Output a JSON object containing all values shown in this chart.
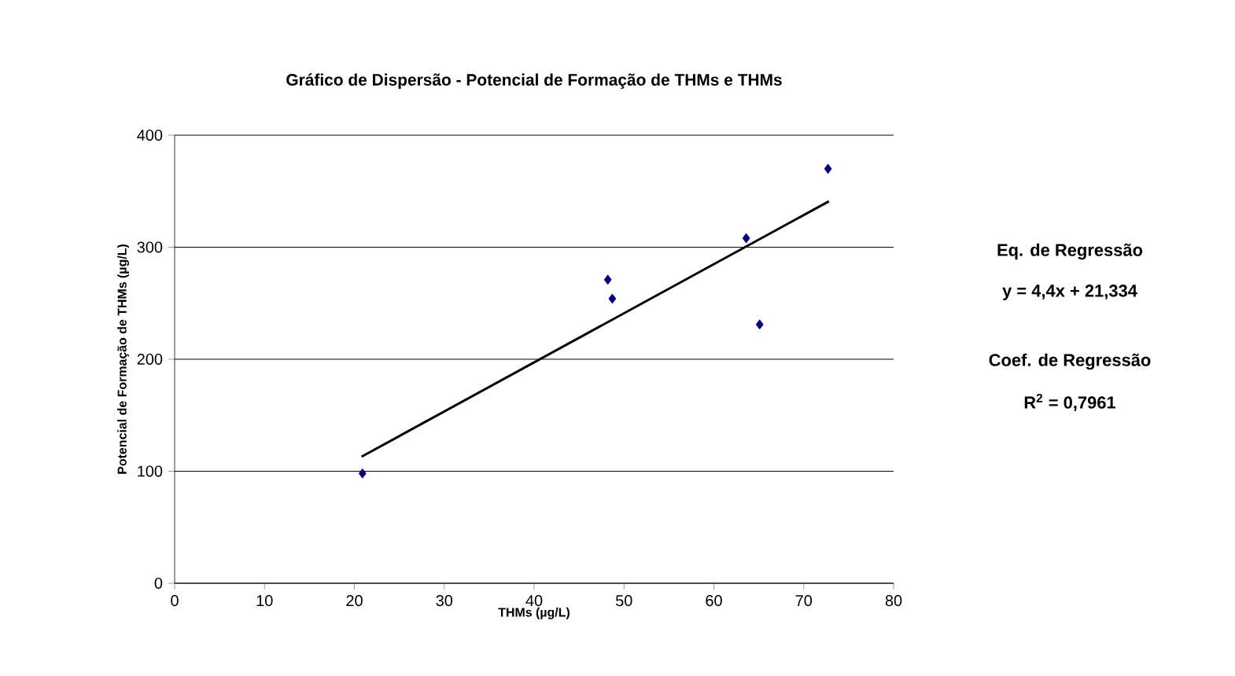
{
  "chart_data": {
    "type": "scatter",
    "title": "Gráfico de Dispersão - Potencial de Formação de THMs e THMs",
    "xlabel": "THMs (µg/L)",
    "ylabel": "Potencial de Formação de THMs (µg/L)",
    "series": [
      {
        "color": "#000080",
        "marker": "diamond",
        "x": [
          20.9,
          48.2,
          48.7,
          63.6,
          65.1,
          72.7
        ],
        "values": [
          98,
          271,
          254,
          308,
          231,
          370
        ]
      },
      {
        "type": "line",
        "color": "#000000",
        "marker": "none",
        "line_style": "solid",
        "x": [
          20.8,
          72.8
        ],
        "values": [
          113,
          341
        ]
      }
    ],
    "xlim": [
      0,
      80
    ],
    "xticks": [
      0,
      10,
      20,
      30,
      40,
      50,
      60,
      70,
      80
    ],
    "ylim": [
      0,
      400
    ],
    "yticks": [
      0,
      100,
      200,
      300,
      400
    ],
    "grid": "y",
    "annotations": [
      "Eq. de Regressão",
      "y = 4,4x + 21,334",
      "Coef. de Regressão",
      "R$^{2}$ = 0,7961"
    ]
  }
}
